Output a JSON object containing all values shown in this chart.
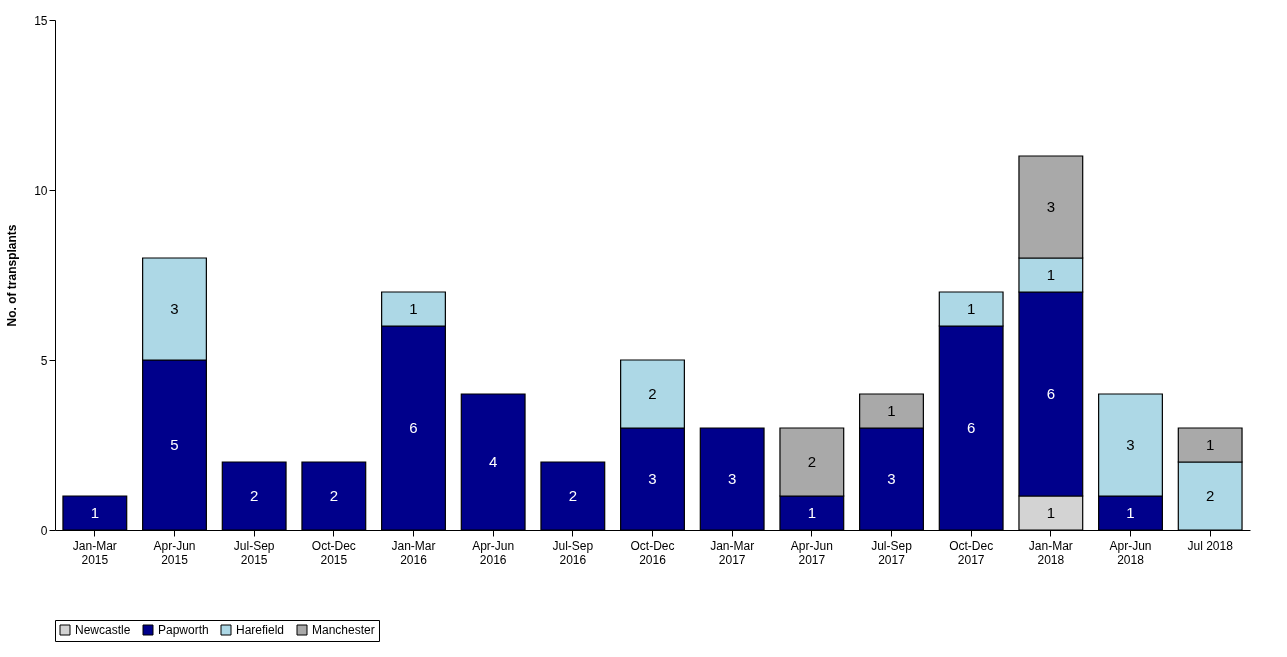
{
  "chart_data": {
    "type": "bar",
    "stacked": true,
    "ylabel": "No. of transplants",
    "categories": [
      "Jan-Mar\n2015",
      "Apr-Jun\n2015",
      "Jul-Sep\n2015",
      "Oct-Dec\n2015",
      "Jan-Mar\n2016",
      "Apr-Jun\n2016",
      "Jul-Sep\n2016",
      "Oct-Dec\n2016",
      "Jan-Mar\n2017",
      "Apr-Jun\n2017",
      "Jul-Sep\n2017",
      "Oct-Dec\n2017",
      "Jan-Mar\n2018",
      "Apr-Jun\n2018",
      "Jul 2018"
    ],
    "series": [
      {
        "name": "Newcastle",
        "color": "#d3d3d3",
        "values": [
          null,
          null,
          null,
          null,
          null,
          null,
          null,
          null,
          null,
          null,
          null,
          null,
          1,
          null,
          null
        ]
      },
      {
        "name": "Papworth",
        "color": "#00008b",
        "values": [
          1,
          5,
          2,
          2,
          6,
          4,
          2,
          3,
          3,
          1,
          3,
          6,
          6,
          1,
          null
        ]
      },
      {
        "name": "Harefield",
        "color": "#add8e6",
        "values": [
          null,
          3,
          null,
          null,
          1,
          null,
          null,
          2,
          null,
          null,
          null,
          1,
          1,
          3,
          2
        ]
      },
      {
        "name": "Manchester",
        "color": "#a9a9a9",
        "values": [
          null,
          null,
          null,
          null,
          null,
          null,
          null,
          null,
          null,
          2,
          1,
          null,
          3,
          null,
          1
        ]
      }
    ],
    "ylim": [
      0,
      15
    ],
    "yticks": [
      0,
      5,
      10,
      15
    ],
    "data_labels": true,
    "legend": "bottom"
  }
}
